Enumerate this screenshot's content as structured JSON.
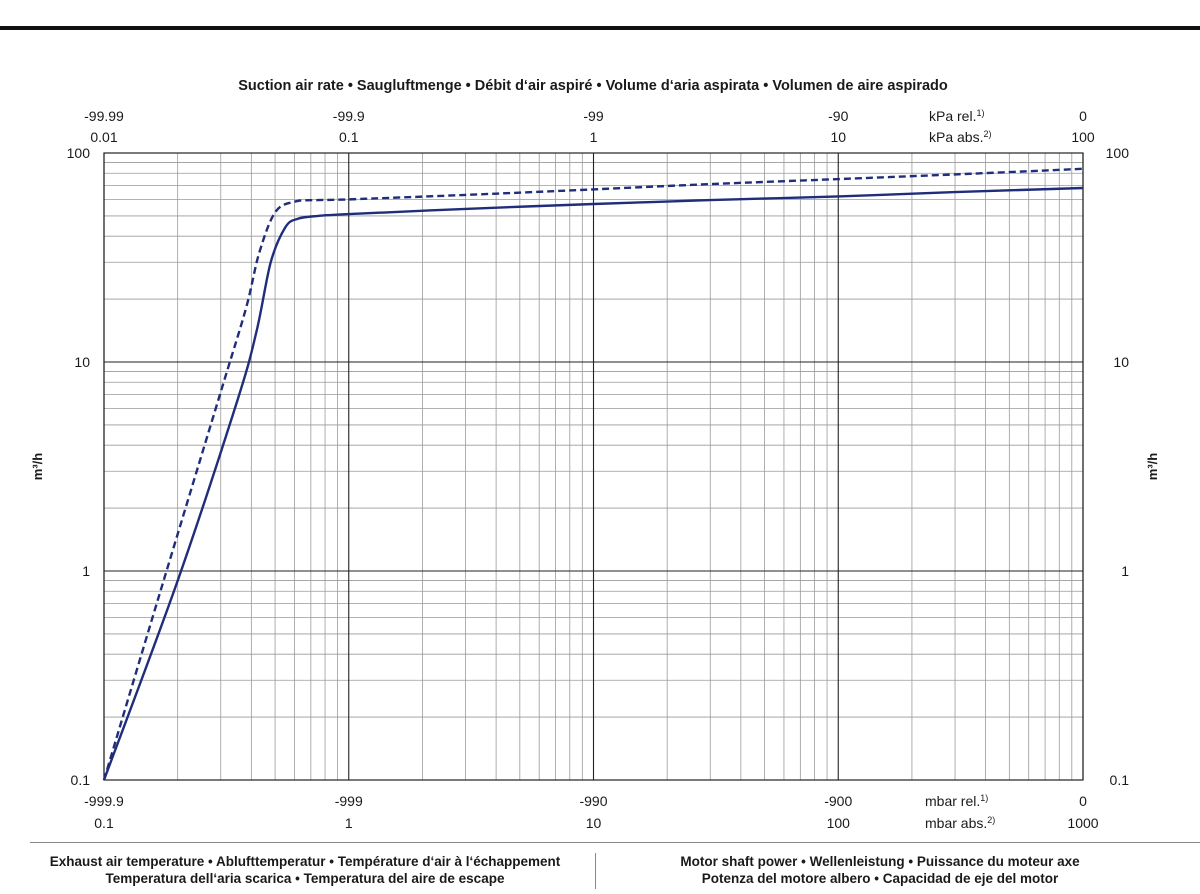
{
  "chart_data": {
    "type": "line",
    "title": "Suction air rate  •  Saugluftmenge  •  Débit d‘air aspiré  •  Volume d‘aria aspirata  •  Volumen de aire aspirado",
    "x_scale": "log",
    "y_scale": "log",
    "xlim": [
      0.1,
      1000
    ],
    "ylim": [
      0.1,
      100
    ],
    "ylabel": "m³/h",
    "ylabel_right": "m³/h",
    "y_ticks": [
      {
        "value": 0.1,
        "label": "0.1"
      },
      {
        "value": 1,
        "label": "1"
      },
      {
        "value": 10,
        "label": "10"
      },
      {
        "value": 100,
        "label": "100"
      }
    ],
    "x_axis_bottom": {
      "unit_rel": "mbar rel.",
      "unit_rel_sup": "1)",
      "unit_abs": "mbar abs.",
      "unit_abs_sup": "2)",
      "ticks": [
        {
          "value": 0.1,
          "rel": "-999.9",
          "abs": "0.1"
        },
        {
          "value": 1,
          "rel": "-999",
          "abs": "1"
        },
        {
          "value": 10,
          "rel": "-990",
          "abs": "10"
        },
        {
          "value": 100,
          "rel": "-900",
          "abs": "100"
        },
        {
          "value": 1000,
          "rel": "0",
          "abs": "1000"
        }
      ]
    },
    "x_axis_top": {
      "unit_rel": "kPa rel.",
      "unit_rel_sup": "1)",
      "unit_abs": "kPa abs.",
      "unit_abs_sup": "2)",
      "ticks": [
        {
          "value": 0.1,
          "rel": "-99.99",
          "abs": "0.01"
        },
        {
          "value": 1,
          "rel": "-99.9",
          "abs": "0.1"
        },
        {
          "value": 10,
          "rel": "-99",
          "abs": "1"
        },
        {
          "value": 100,
          "rel": "-90",
          "abs": "10"
        },
        {
          "value": 1000,
          "rel": "0",
          "abs": "100"
        }
      ]
    },
    "grid": true,
    "series": [
      {
        "style": "solid",
        "color": "#1f2d7a",
        "points": [
          [
            0.1,
            0.1
          ],
          [
            0.2,
            0.9
          ],
          [
            0.35,
            6.5
          ],
          [
            0.42,
            14
          ],
          [
            0.48,
            30
          ],
          [
            0.55,
            44
          ],
          [
            0.62,
            48.5
          ],
          [
            0.75,
            50
          ],
          [
            1,
            51
          ],
          [
            3,
            54
          ],
          [
            10,
            57
          ],
          [
            30,
            59.5
          ],
          [
            100,
            62
          ],
          [
            300,
            65
          ],
          [
            1000,
            68
          ]
        ]
      },
      {
        "style": "dashed",
        "color": "#1f2d7a",
        "points": [
          [
            0.1,
            0.1
          ],
          [
            0.17,
            0.8
          ],
          [
            0.3,
            7.2
          ],
          [
            0.38,
            18
          ],
          [
            0.43,
            33
          ],
          [
            0.5,
            52
          ],
          [
            0.6,
            58.5
          ],
          [
            0.75,
            59.5
          ],
          [
            1,
            60
          ],
          [
            3,
            63
          ],
          [
            10,
            67
          ],
          [
            30,
            71
          ],
          [
            100,
            75
          ],
          [
            300,
            79
          ],
          [
            1000,
            84
          ]
        ]
      }
    ]
  },
  "footer": {
    "left_line1": "Exhaust air temperature  •  Ablufttemperatur  •  Température d‘air à l‘échappement",
    "left_line2": "Temperatura dell‘aria scarica  •  Temperatura del aire de escape",
    "right_line1": "Motor shaft power  •  Wellenleistung  •  Puissance du moteur axe",
    "right_line2": "Potenza del motore albero  •  Capacidad de eje del motor"
  }
}
